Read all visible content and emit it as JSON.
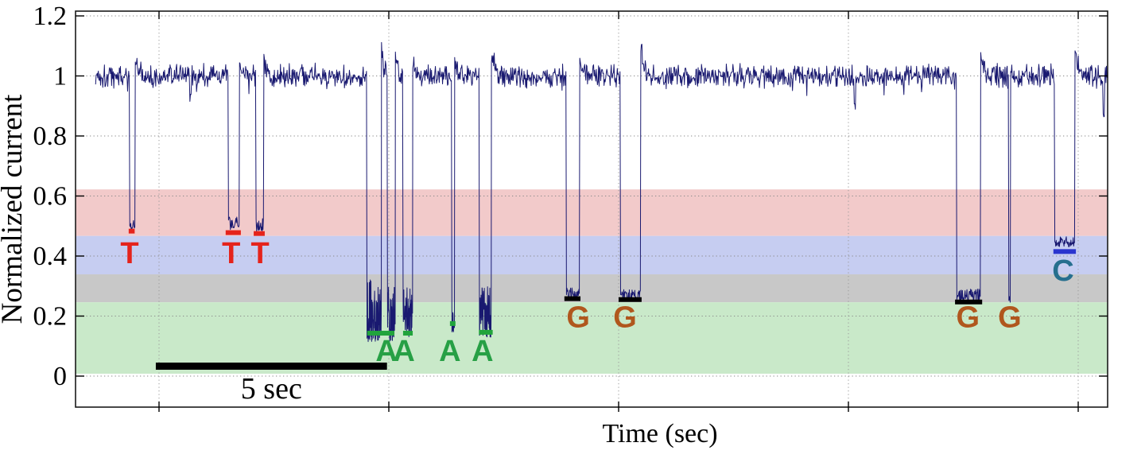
{
  "figure": {
    "ylabel": "Normalized current",
    "xlabel": "Time (sec)",
    "scalebar_label": "5 sec"
  },
  "chart_data": {
    "type": "line",
    "title": "",
    "xlabel": "Time (sec)",
    "ylabel": "Normalized current",
    "grid": "dotted",
    "legend": "none",
    "ylim": [
      -0.103,
      1.215
    ],
    "xlim_sec": [
      -1.82,
      20.64
    ],
    "yticks": [
      0,
      0.2,
      0.4,
      0.6,
      0.8,
      1,
      1.2
    ],
    "ytick_labels": [
      "0",
      "0.2",
      "0.4",
      "0.6",
      "0.8",
      "1",
      "1.2"
    ],
    "x_gridlines_sec": [
      0,
      5,
      10,
      15,
      20
    ],
    "xtick_labels": [],
    "trace_color": "#191970",
    "baseline_level": 1.0,
    "baseline_noise": 0.045,
    "trace_start_sec": -1.38,
    "base_calls": "TTTAAAAGGGGC",
    "base_colors": {
      "T": "#e5231b",
      "A": "#27a045",
      "G": "#b0571d",
      "C": "#266f8e"
    },
    "bands": [
      {
        "name": "T",
        "from": 0.467,
        "to": 0.622,
        "color": "#f2caca"
      },
      {
        "name": "C",
        "from": 0.339,
        "to": 0.467,
        "color": "#c6cdf1"
      },
      {
        "name": "G",
        "from": 0.246,
        "to": 0.339,
        "color": "#c8c8c8"
      },
      {
        "name": "A",
        "from": 0.008,
        "to": 0.246,
        "color": "#c9e9c9"
      }
    ],
    "dips": [
      {
        "t0": -0.64,
        "t1": -0.52,
        "lo": 0.485,
        "hi": 0.52,
        "spike": 0.05
      },
      {
        "t0": 1.51,
        "t1": 1.75,
        "lo": 0.48,
        "hi": 0.53,
        "spike": 0.09
      },
      {
        "t0": 2.11,
        "t1": 2.28,
        "lo": 0.48,
        "hi": 0.53,
        "spike": 0.07
      },
      {
        "t0": 4.52,
        "t1": 4.84,
        "lo": 0.115,
        "hi": 0.33,
        "dense": true,
        "spike": 0.1
      },
      {
        "t0": 4.97,
        "t1": 5.14,
        "lo": 0.115,
        "hi": 0.3,
        "dense": true,
        "spike": 0.08
      },
      {
        "t0": 5.31,
        "t1": 5.52,
        "lo": 0.125,
        "hi": 0.3,
        "dense": true,
        "spike": 0.09
      },
      {
        "t0": 6.37,
        "t1": 6.43,
        "lo": 0.145,
        "hi": 0.23,
        "dense": true,
        "spike": 0.05
      },
      {
        "t0": 6.97,
        "t1": 7.23,
        "lo": 0.13,
        "hi": 0.3,
        "dense": true,
        "spike": 0.12
      },
      {
        "t0": 8.86,
        "t1": 9.15,
        "lo": 0.255,
        "hi": 0.295,
        "spike": 0.1
      },
      {
        "t0": 10.04,
        "t1": 10.48,
        "lo": 0.25,
        "hi": 0.29,
        "spike": 0.13
      },
      {
        "t0": 17.35,
        "t1": 17.87,
        "lo": 0.25,
        "hi": 0.29,
        "spike": 0.1
      },
      {
        "t0": 18.48,
        "t1": 18.53,
        "lo": 0.24,
        "hi": 0.27,
        "spike": 0
      },
      {
        "t0": 19.48,
        "t1": 19.93,
        "lo": 0.43,
        "hi": 0.465,
        "spike": 0.09
      }
    ],
    "glitches": [
      {
        "t": 0.69,
        "level": 0.925
      },
      {
        "t": 15.14,
        "level": 0.9
      },
      {
        "t": 20.55,
        "level": 0.87
      }
    ],
    "markers": [
      {
        "t0": -0.66,
        "t1": -0.53,
        "y": 0.483,
        "color": "#e5231b"
      },
      {
        "t0": 1.45,
        "t1": 1.78,
        "y": 0.478,
        "color": "#e5231b"
      },
      {
        "t0": 2.06,
        "t1": 2.3,
        "y": 0.475,
        "color": "#e5231b"
      },
      {
        "t0": 4.53,
        "t1": 5.12,
        "y": 0.143,
        "color": "#21a43c"
      },
      {
        "t0": 5.31,
        "t1": 5.52,
        "y": 0.143,
        "color": "#21a43c"
      },
      {
        "t0": 6.33,
        "t1": 6.45,
        "y": 0.175,
        "color": "#21a43c"
      },
      {
        "t0": 6.96,
        "t1": 7.26,
        "y": 0.146,
        "color": "#21a43c"
      },
      {
        "t0": 8.82,
        "t1": 9.17,
        "y": 0.258,
        "color": "#000000"
      },
      {
        "t0": 10.0,
        "t1": 10.5,
        "y": 0.255,
        "color": "#000000"
      },
      {
        "t0": 17.32,
        "t1": 17.91,
        "y": 0.247,
        "color": "#000000"
      },
      {
        "t0": 19.46,
        "t1": 19.95,
        "y": 0.415,
        "color": "#2a35cf"
      }
    ],
    "letters": [
      {
        "base": "T",
        "t": -0.64,
        "y": 0.41
      },
      {
        "base": "T",
        "t": 1.57,
        "y": 0.41
      },
      {
        "base": "T",
        "t": 2.2,
        "y": 0.41
      },
      {
        "base": "A",
        "t": 4.95,
        "y": 0.085
      },
      {
        "base": "A",
        "t": 5.33,
        "y": 0.085
      },
      {
        "base": "A",
        "t": 6.33,
        "y": 0.085
      },
      {
        "base": "A",
        "t": 7.04,
        "y": 0.085
      },
      {
        "base": "G",
        "t": 9.12,
        "y": 0.198
      },
      {
        "base": "G",
        "t": 10.14,
        "y": 0.198
      },
      {
        "base": "G",
        "t": 17.6,
        "y": 0.198
      },
      {
        "base": "G",
        "t": 18.51,
        "y": 0.198
      },
      {
        "base": "C",
        "t": 19.67,
        "y": 0.352
      }
    ],
    "scalebar": {
      "t0": -0.07,
      "t1": 4.96,
      "duration_sec": 5,
      "label": "5 sec"
    }
  }
}
